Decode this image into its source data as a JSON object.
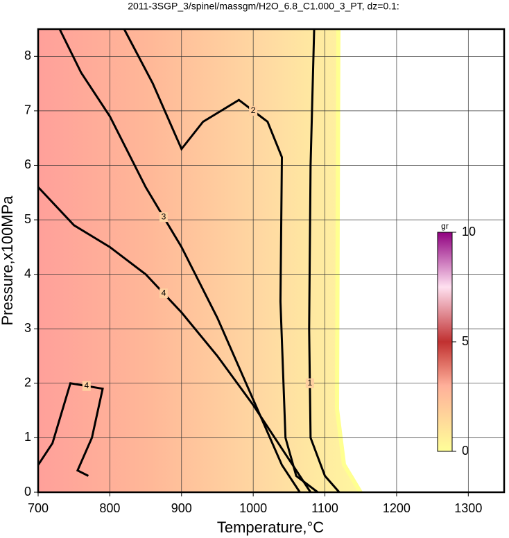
{
  "chart_data": {
    "type": "contour",
    "title": "2011-3SGP_3/spinel/massgm/H2O_6.8_C1.000_3_PT, dz=0.1:",
    "x_label": "Temperature,°C",
    "y_label": "Pressure,x100MPa",
    "xlim": [
      700,
      1350
    ],
    "ylim": [
      0,
      8.5
    ],
    "xticks": [
      700,
      800,
      900,
      1000,
      1100,
      1200,
      1300
    ],
    "yticks": [
      0,
      1,
      2,
      3,
      4,
      5,
      6,
      7,
      8
    ],
    "grid": true,
    "color": "#000000",
    "contours": [
      {
        "level": 4,
        "x": [
          700,
          750,
          800,
          850,
          900,
          950,
          1000,
          1050,
          1080
        ],
        "y": [
          5.6,
          4.9,
          4.5,
          4.0,
          3.3,
          2.5,
          1.6,
          0.6,
          0
        ]
      },
      {
        "level": 3,
        "x": [
          730,
          760,
          800,
          850,
          900,
          950,
          1000,
          1040,
          1065
        ],
        "y": [
          8.5,
          7.7,
          6.9,
          5.6,
          4.5,
          3.2,
          1.7,
          0.5,
          0
        ]
      },
      {
        "level": 2,
        "x": [
          820,
          860,
          900,
          930,
          980,
          1020,
          1040,
          1038,
          1045,
          1060,
          1090
        ],
        "y": [
          8.5,
          7.5,
          6.3,
          6.8,
          7.2,
          6.8,
          6.15,
          3.5,
          1.0,
          0.3,
          0
        ]
      },
      {
        "level": 1,
        "x": [
          1085,
          1080,
          1078,
          1080,
          1100,
          1120
        ],
        "y": [
          8.5,
          6.0,
          3.0,
          1.0,
          0.3,
          0
        ]
      },
      {
        "level": 4,
        "x": [
          700,
          720,
          745,
          790,
          775,
          755,
          770
        ],
        "y": [
          0.5,
          0.9,
          2.0,
          1.9,
          1.0,
          0.4,
          0.3
        ]
      }
    ],
    "colorbar": {
      "label": "gr",
      "lim": [
        0,
        10
      ],
      "ticks": [
        0,
        5,
        10
      ]
    }
  }
}
